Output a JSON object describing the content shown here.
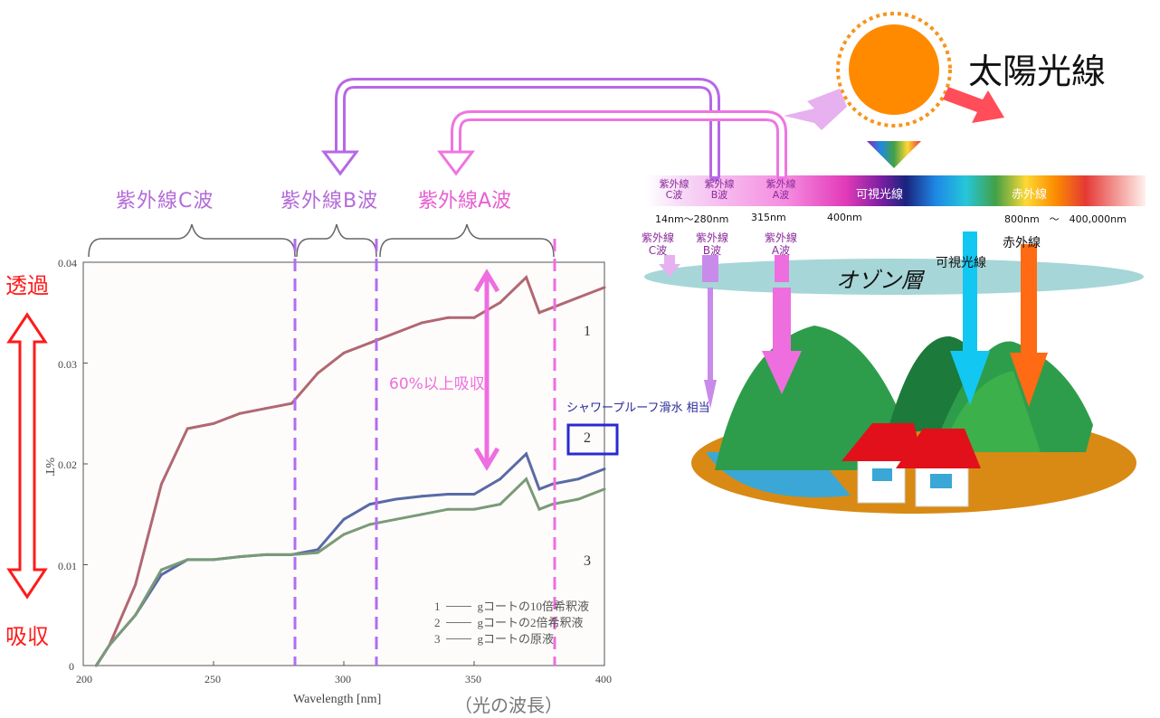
{
  "title": "太陽光線",
  "axis": {
    "top_label": "透過",
    "bottom_label": "吸収",
    "ylabel": "%T",
    "xlabel": "Wavelength [nm]",
    "xlabel_jp": "（光の波長）",
    "x_ticks": [
      "200",
      "250",
      "300",
      "350",
      "400"
    ],
    "y_ticks": [
      "0.04",
      "0.03",
      "0.02",
      "0.01",
      "0"
    ]
  },
  "bands": {
    "uvc": "紫外線C波",
    "uvb": "紫外線B波",
    "uva": "紫外線A波"
  },
  "annotations": {
    "absorb": "60%以上吸収",
    "shower": "シャワープルーフ滑水 相当",
    "curve1": "1",
    "curve2": "2",
    "curve3": "3"
  },
  "legend": [
    {
      "num": "1",
      "text": "gコートの10倍希釈液"
    },
    {
      "num": "2",
      "text": "gコートの2倍希釈液"
    },
    {
      "num": "3",
      "text": "gコートの原液"
    }
  ],
  "spectrum": {
    "c_label_1": "紫外線",
    "c_label_2": "C波",
    "b_label_1": "紫外線",
    "b_label_2": "B波",
    "a_label_1": "紫外線",
    "a_label_2": "A波",
    "visible": "可視光線",
    "infrared": "赤外線",
    "nm1": "14nm〜280nm",
    "nm2": "315nm",
    "nm3": "400nm",
    "nm4": "800nm　〜　400,000nm"
  },
  "scene": {
    "c_label_1": "紫外線",
    "c_label_2": "C波",
    "b_label_1": "紫外線",
    "b_label_2": "B波",
    "a_label_1": "紫外線",
    "a_label_2": "A波",
    "visible": "可視光線",
    "infrared": "赤外線",
    "ozone": "オゾン層"
  },
  "chart_data": {
    "type": "line",
    "xlabel": "Wavelength [nm]",
    "ylabel": "%T",
    "xlim": [
      200,
      400
    ],
    "ylim": [
      0,
      0.04
    ],
    "x": [
      205,
      210,
      220,
      230,
      240,
      250,
      260,
      270,
      280,
      290,
      300,
      310,
      320,
      330,
      340,
      350,
      360,
      370,
      375,
      380,
      390,
      400
    ],
    "series": [
      {
        "name": "1",
        "values": [
          0.0,
          0.002,
          0.008,
          0.018,
          0.0235,
          0.024,
          0.025,
          0.0255,
          0.026,
          0.029,
          0.031,
          0.032,
          0.033,
          0.034,
          0.0345,
          0.0345,
          0.036,
          0.0385,
          0.035,
          0.0355,
          0.0365,
          0.0375
        ]
      },
      {
        "name": "2",
        "values": [
          0.0,
          0.002,
          0.005,
          0.009,
          0.0105,
          0.0105,
          0.0108,
          0.011,
          0.011,
          0.0115,
          0.0145,
          0.016,
          0.0165,
          0.0168,
          0.017,
          0.017,
          0.0185,
          0.021,
          0.0175,
          0.018,
          0.0185,
          0.0195
        ]
      },
      {
        "name": "3",
        "values": [
          0.0,
          0.002,
          0.005,
          0.0095,
          0.0105,
          0.0105,
          0.0108,
          0.011,
          0.011,
          0.0112,
          0.013,
          0.014,
          0.0145,
          0.015,
          0.0155,
          0.0155,
          0.016,
          0.0185,
          0.0155,
          0.016,
          0.0165,
          0.0175
        ]
      }
    ]
  }
}
